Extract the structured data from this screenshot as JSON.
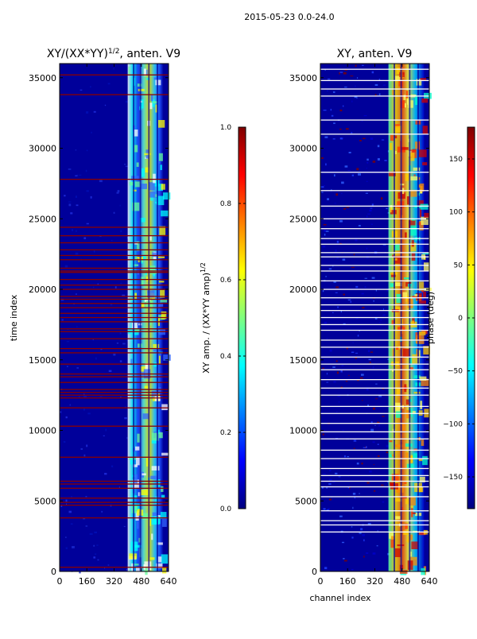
{
  "suptitle": "2015-05-23 0.0-24.0",
  "colors": {
    "jet": [
      "#00007f",
      "#0000ff",
      "#007fff",
      "#00ffff",
      "#7fff7f",
      "#ffff00",
      "#ff7f00",
      "#ff0000",
      "#7f0000"
    ],
    "background_dark_blue": "#00009a"
  },
  "chart_data": [
    {
      "type": "heatmap",
      "title_base": "XY/(XX*YY)",
      "title_exponent": "1/2",
      "title_suffix": ", anten. V9",
      "xlabel": "",
      "ylabel": "time index",
      "xlim": [
        0,
        640
      ],
      "ylim": [
        0,
        36000
      ],
      "xticks": [
        0,
        160,
        320,
        480,
        640
      ],
      "yticks": [
        0,
        5000,
        10000,
        15000,
        20000,
        25000,
        30000,
        35000
      ],
      "active_channel_range": [
        400,
        610
      ],
      "flagged_rows": [
        300,
        3800,
        4700,
        4900,
        5200,
        5900,
        6200,
        6400,
        8100,
        10300,
        11600,
        12300,
        12500,
        12700,
        12900,
        13400,
        13800,
        14000,
        14700,
        15500,
        15800,
        16500,
        17000,
        17200,
        17700,
        18000,
        18300,
        18700,
        19000,
        19300,
        19500,
        20000,
        20300,
        20700,
        21200,
        21300,
        21500,
        22100,
        22400,
        22800,
        23300,
        23800,
        24400,
        27800,
        33800,
        35200
      ],
      "colorbar": {
        "label": "XY amp. / (XX*YY amp)",
        "label_exponent": "1/2",
        "range": [
          0.0,
          1.0
        ],
        "ticks": [
          "0.0",
          "0.2",
          "0.4",
          "0.6",
          "0.8",
          "1.0"
        ]
      }
    },
    {
      "type": "heatmap",
      "title": "XY, anten. V9",
      "xlabel": "channel index",
      "ylabel": "",
      "xlim": [
        0,
        640
      ],
      "ylim": [
        0,
        36000
      ],
      "xticks": [
        0,
        160,
        320,
        480,
        640
      ],
      "yticks": [
        0,
        5000,
        10000,
        15000,
        20000,
        25000,
        30000,
        35000
      ],
      "active_channel_range": [
        400,
        610
      ],
      "flagged_rows": [
        2800,
        3300,
        3600,
        4300,
        5300,
        6000,
        6400,
        6800,
        7300,
        8000,
        8600,
        9400,
        9900,
        10500,
        11200,
        11700,
        12500,
        13000,
        13600,
        14300,
        14700,
        15200,
        15900,
        16400,
        17100,
        17500,
        18000,
        18500,
        18900,
        19400,
        20000,
        20600,
        21300,
        21700,
        22300,
        22600,
        23200,
        23600,
        24300,
        25000,
        25900,
        27000,
        28300,
        31000,
        32000,
        33700,
        34200,
        34800,
        35600
      ],
      "colorbar": {
        "label": "phase (deg)",
        "range": [
          -180,
          180
        ],
        "ticks": [
          "150",
          "100",
          "50",
          "0",
          "−50",
          "−100",
          "−150"
        ]
      }
    }
  ]
}
